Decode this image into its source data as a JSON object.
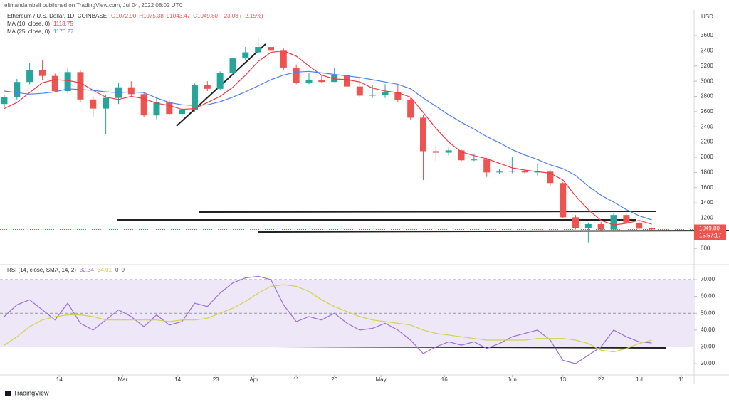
{
  "header": {
    "publisher": "elimandambell published on TradingView.com, Jul 04, 2022 08:02 UTC",
    "ohlc": [
      "O1072.90",
      "H1075.38",
      "L1043.47",
      "C1049.80",
      "−23.08 (−2.15%)"
    ]
  },
  "footer": "TradingView",
  "chart_data": [
    {
      "type": "candlestick",
      "title": "Ethereum / U.S. Dollar, 1D, COINBASE",
      "y_axis_label": "USD",
      "x": [
        "02-01",
        "02-04",
        "02-07",
        "02-10",
        "02-13",
        "02-16",
        "02-19",
        "02-22",
        "02-25",
        "02-28",
        "03-03",
        "03-06",
        "03-09",
        "03-12",
        "03-15",
        "03-18",
        "03-21",
        "03-24",
        "03-27",
        "03-30",
        "04-02",
        "04-05",
        "04-08",
        "04-11",
        "04-14",
        "04-17",
        "04-20",
        "04-23",
        "04-26",
        "04-29",
        "05-02",
        "05-05",
        "05-08",
        "05-11",
        "05-14",
        "05-17",
        "05-20",
        "05-23",
        "05-26",
        "05-29",
        "06-01",
        "06-04",
        "06-07",
        "06-10",
        "06-13",
        "06-16",
        "06-19",
        "06-22",
        "06-25",
        "06-28",
        "07-01",
        "07-04"
      ],
      "open": [
        2700,
        2790,
        2990,
        3150,
        3070,
        2870,
        3120,
        2760,
        2640,
        2780,
        2920,
        2830,
        2550,
        2730,
        2570,
        2620,
        2950,
        2900,
        3110,
        3300,
        3380,
        3450,
        3410,
        3180,
        2980,
        3020,
        2990,
        3080,
        2930,
        2810,
        2820,
        2860,
        2750,
        2520,
        2080,
        2060,
        2090,
        1960,
        1970,
        1800,
        1810,
        1820,
        1800,
        1810,
        1660,
        1210,
        1070,
        1120,
        1050,
        1240,
        1140,
        1072.9
      ],
      "high": [
        2820,
        3030,
        3240,
        3280,
        3100,
        3180,
        3140,
        2800,
        2820,
        2980,
        3000,
        2850,
        2780,
        2750,
        2660,
        2970,
        3000,
        3130,
        3310,
        3450,
        3580,
        3550,
        3430,
        3220,
        3110,
        3080,
        3170,
        3100,
        3040,
        2950,
        2960,
        2950,
        2780,
        2560,
        2150,
        2130,
        2100,
        2050,
        1990,
        1850,
        2000,
        1850,
        1920,
        1830,
        1670,
        1240,
        1140,
        1150,
        1260,
        1250,
        1150,
        1075.38
      ],
      "low": [
        2660,
        2760,
        2960,
        3020,
        2850,
        2840,
        2720,
        2530,
        2300,
        2700,
        2800,
        2530,
        2500,
        2550,
        2510,
        2600,
        2870,
        2880,
        3090,
        3280,
        3370,
        3400,
        3150,
        2960,
        2960,
        2980,
        2990,
        2910,
        2790,
        2780,
        2780,
        2720,
        2490,
        1700,
        1950,
        2020,
        1950,
        1950,
        1740,
        1780,
        1790,
        1780,
        1760,
        1620,
        1200,
        1050,
        880,
        1040,
        1040,
        1130,
        1030,
        1043.47
      ],
      "close": [
        2790,
        2990,
        3150,
        3070,
        2870,
        3120,
        2760,
        2640,
        2780,
        2920,
        2830,
        2550,
        2730,
        2570,
        2620,
        2950,
        2900,
        3110,
        3300,
        3380,
        3450,
        3410,
        3180,
        2980,
        3020,
        2990,
        3080,
        2930,
        2810,
        2820,
        2860,
        2750,
        2520,
        2080,
        2060,
        2090,
        1960,
        1970,
        1800,
        1810,
        1820,
        1800,
        1810,
        1660,
        1210,
        1070,
        1120,
        1050,
        1240,
        1140,
        1060,
        1049.8
      ],
      "up_color": "#26a69a",
      "down_color": "#ef5350",
      "series": [
        {
          "name": "MA (10, close, 0)",
          "color": "#f23645",
          "last": 1118.75,
          "values": [
            2640,
            2720,
            2850,
            2980,
            3020,
            3010,
            2980,
            2880,
            2790,
            2760,
            2800,
            2770,
            2710,
            2680,
            2630,
            2640,
            2720,
            2800,
            2920,
            3080,
            3260,
            3380,
            3400,
            3330,
            3200,
            3080,
            3030,
            3020,
            2990,
            2910,
            2870,
            2850,
            2790,
            2590,
            2380,
            2200,
            2070,
            2020,
            1980,
            1920,
            1860,
            1830,
            1810,
            1790,
            1700,
            1490,
            1310,
            1170,
            1110,
            1130,
            1170,
            1118.75
          ]
        },
        {
          "name": "MA (25, close, 0)",
          "color": "#4f7ff0",
          "last": 1176.27,
          "values": [
            2870,
            2850,
            2830,
            2840,
            2860,
            2900,
            2890,
            2880,
            2860,
            2850,
            2860,
            2850,
            2780,
            2720,
            2690,
            2680,
            2690,
            2730,
            2790,
            2860,
            2940,
            3020,
            3080,
            3120,
            3130,
            3110,
            3090,
            3070,
            3050,
            3020,
            2990,
            2960,
            2900,
            2780,
            2670,
            2560,
            2460,
            2370,
            2270,
            2190,
            2100,
            2030,
            1970,
            1900,
            1850,
            1760,
            1620,
            1500,
            1410,
            1310,
            1230,
            1176.27
          ]
        }
      ],
      "ylim": [
        680,
        3900
      ],
      "yticks": [
        800,
        1200,
        1400,
        1600,
        1800,
        2000,
        2200,
        2400,
        2600,
        2800,
        3000,
        3200,
        3400,
        3600
      ],
      "last_price": {
        "value": 1049.8,
        "label": "1049.80"
      },
      "countdown": "15:57:17",
      "xlim": [
        "01-31",
        "07-14"
      ],
      "xticks": [
        {
          "value": "02-14",
          "label": "14"
        },
        {
          "value": "03-01",
          "label": "Mar"
        },
        {
          "value": "03-14",
          "label": "14"
        },
        {
          "value": "03-23",
          "label": "23"
        },
        {
          "value": "04-01",
          "label": "Apr"
        },
        {
          "value": "04-11",
          "label": "11"
        },
        {
          "value": "04-20",
          "label": "20"
        },
        {
          "value": "05-01",
          "label": "May"
        },
        {
          "value": "05-16",
          "label": "16"
        },
        {
          "value": "06-01",
          "label": "Jun"
        },
        {
          "value": "06-13",
          "label": "13"
        },
        {
          "value": "06-22",
          "label": "22"
        },
        {
          "value": "07-01",
          "label": "Jul"
        },
        {
          "value": "07-11",
          "label": "11"
        }
      ]
    },
    {
      "type": "line",
      "title": "RSI (14, close, SMA, 14, 2)",
      "legend_extra": [
        0,
        0
      ],
      "x": [
        "02-01",
        "02-04",
        "02-07",
        "02-10",
        "02-13",
        "02-16",
        "02-19",
        "02-22",
        "02-25",
        "02-28",
        "03-03",
        "03-06",
        "03-09",
        "03-12",
        "03-15",
        "03-18",
        "03-21",
        "03-24",
        "03-27",
        "03-30",
        "04-02",
        "04-05",
        "04-08",
        "04-11",
        "04-14",
        "04-17",
        "04-20",
        "04-23",
        "04-26",
        "04-29",
        "05-02",
        "05-05",
        "05-08",
        "05-11",
        "05-14",
        "05-17",
        "05-20",
        "05-23",
        "05-26",
        "05-29",
        "06-01",
        "06-04",
        "06-07",
        "06-10",
        "06-13",
        "06-16",
        "06-19",
        "06-22",
        "06-25",
        "06-28",
        "07-01",
        "07-04"
      ],
      "series": [
        {
          "color": "#9a6fd6",
          "last": 32.34,
          "values": [
            48,
            55,
            58,
            52,
            46,
            56,
            44,
            40,
            46,
            52,
            48,
            42,
            49,
            43,
            45,
            56,
            54,
            62,
            68,
            71,
            72,
            70,
            55,
            45,
            48,
            46,
            50,
            44,
            40,
            41,
            44,
            40,
            34,
            26,
            30,
            33,
            31,
            33,
            29,
            32,
            36,
            38,
            40,
            34,
            22,
            20,
            25,
            30,
            40,
            36,
            33,
            32.34
          ]
        },
        {
          "color": "#d2d24a",
          "last": 34.01,
          "values": [
            31,
            36,
            42,
            46,
            48,
            49,
            49,
            48,
            46,
            46,
            46,
            46,
            46,
            45,
            46,
            46,
            47,
            50,
            53,
            57,
            62,
            66,
            67,
            66,
            63,
            58,
            54,
            51,
            48,
            46,
            45,
            44,
            43,
            40,
            38,
            37,
            36,
            35,
            34,
            34,
            34,
            34,
            35,
            35,
            35,
            34,
            32,
            28,
            27,
            29,
            32,
            34.01
          ]
        }
      ],
      "band": [
        30,
        70
      ],
      "ylim": [
        12,
        75.5
      ],
      "yticks": [
        {
          "value": 20,
          "label": "20.00"
        },
        {
          "value": 30,
          "label": "30.00"
        },
        {
          "value": 40,
          "label": "40.00"
        },
        {
          "value": 50,
          "label": "50.00"
        },
        {
          "value": 60,
          "label": "60.00"
        },
        {
          "value": 70,
          "label": "70.00"
        }
      ]
    }
  ]
}
